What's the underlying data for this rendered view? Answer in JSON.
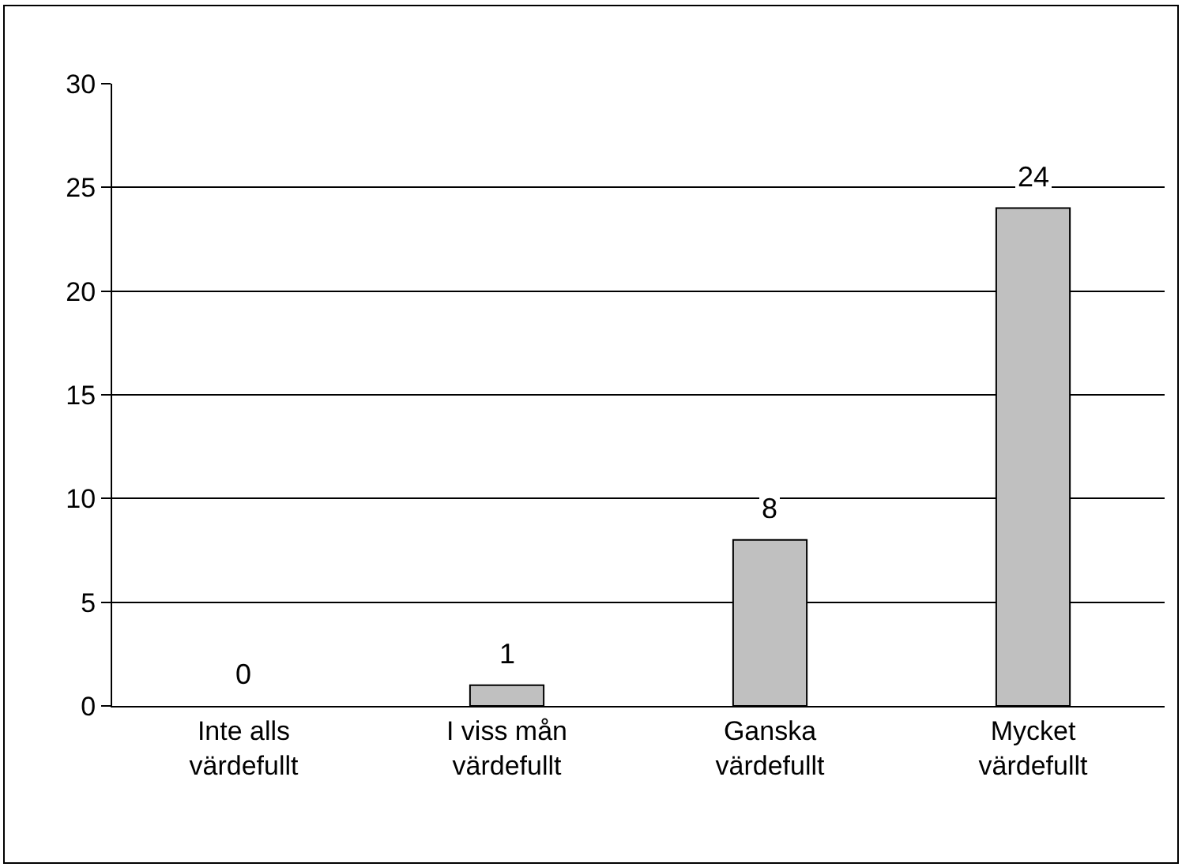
{
  "chart_data": {
    "type": "bar",
    "categories": [
      "Inte alls värdefullt",
      "I viss mån värdefullt",
      "Ganska värdefullt",
      "Mycket värdefullt"
    ],
    "values": [
      0,
      1,
      8,
      24
    ],
    "color": "#c0c0c0",
    "ylim": [
      0,
      30
    ],
    "yticks": [
      0,
      5,
      10,
      15,
      20,
      25,
      30
    ],
    "grid": "y",
    "legend": false,
    "data_labels": true
  }
}
